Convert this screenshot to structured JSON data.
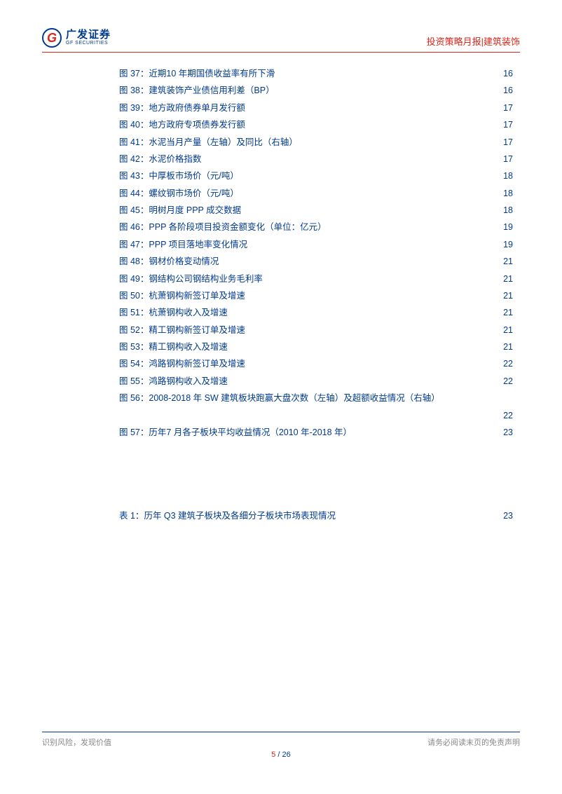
{
  "header": {
    "logo_cn": "广发证券",
    "logo_en": "GF SECURITIES",
    "right_text": "投资策略月报|建筑装饰"
  },
  "toc_figures": [
    {
      "label": "图 37：",
      "title": "近期10 年期国债收益率有所下滑",
      "page": "16"
    },
    {
      "label": "图 38：",
      "title": "建筑装饰产业债信用利差（BP）",
      "page": "16"
    },
    {
      "label": "图 39：",
      "title": "地方政府债券单月发行额",
      "page": "17"
    },
    {
      "label": "图 40：",
      "title": "地方政府专项债券发行额",
      "page": "17"
    },
    {
      "label": "图 41：",
      "title": "水泥当月产量（左轴）及同比（右轴）",
      "page": "17"
    },
    {
      "label": "图 42：",
      "title": "水泥价格指数",
      "page": "17"
    },
    {
      "label": "图 43：",
      "title": "中厚板市场价（元/吨）",
      "page": "18"
    },
    {
      "label": "图 44：",
      "title": "螺纹钢市场价（元/吨）",
      "page": "18"
    },
    {
      "label": "图 45：",
      "title": "明树月度 PPP 成交数据",
      "page": "18"
    },
    {
      "label": "图 46：",
      "title": "PPP 各阶段项目投资金额变化（单位：亿元）",
      "page": "19"
    },
    {
      "label": "图 47：",
      "title": "PPP 项目落地率变化情况",
      "page": "19"
    },
    {
      "label": "图 48：",
      "title": "钢材价格变动情况",
      "page": "21"
    },
    {
      "label": "图 49：",
      "title": "钢结构公司钢结构业务毛利率",
      "page": "21"
    },
    {
      "label": "图 50：",
      "title": "杭萧钢构新签订单及增速",
      "page": "21"
    },
    {
      "label": "图 51：",
      "title": "杭萧钢构收入及增速",
      "page": "21"
    },
    {
      "label": "图 52：",
      "title": "精工钢构新签订单及增速",
      "page": "21"
    },
    {
      "label": "图 53：",
      "title": "精工钢构收入及增速",
      "page": "21"
    },
    {
      "label": "图 54：",
      "title": "鸿路钢构新签订单及增速",
      "page": "22"
    },
    {
      "label": "图 55：",
      "title": "鸿路钢构收入及增速",
      "page": "22"
    }
  ],
  "toc_wrap": {
    "label": "图 56：",
    "title": "2008-2018 年 SW 建筑板块跑赢大盘次数（左轴）及超额收益情况（右轴）",
    "page": "22"
  },
  "toc_figure57": {
    "label": "图 57：",
    "title": "历年7 月各子板块平均收益情况（2010 年-2018 年）",
    "page": "23"
  },
  "toc_tables": [
    {
      "label": "表 1：",
      "title": "历年 Q3 建筑子板块及各细分子板块市场表现情况",
      "page": "23"
    }
  ],
  "footer": {
    "left": "识别风险，发现价值",
    "right": "请务必阅读末页的免责声明",
    "page_current": "5",
    "page_sep": " / ",
    "page_total": "26"
  },
  "colors": {
    "brand_blue": "#003a8c",
    "brand_red": "#d9261c",
    "muted": "#888888",
    "background": "#ffffff"
  },
  "typography": {
    "body_fontsize_pt": 9,
    "header_right_fontsize_pt": 10,
    "logo_cn_fontsize_pt": 11,
    "logo_en_fontsize_pt": 5,
    "footer_fontsize_pt": 8
  }
}
